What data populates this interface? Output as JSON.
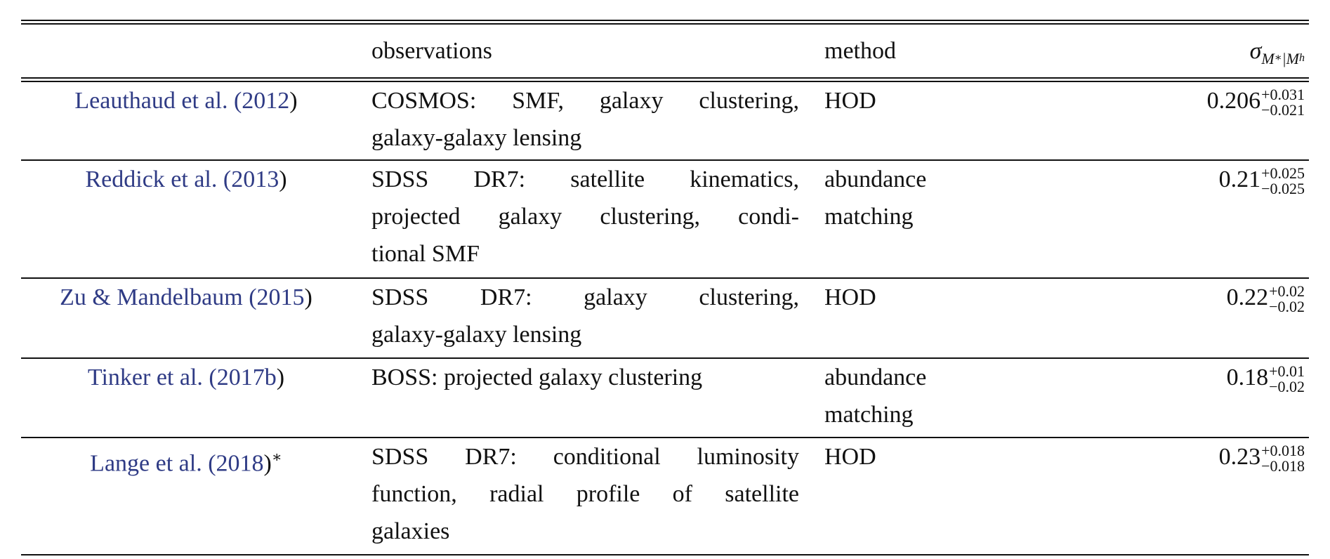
{
  "table": {
    "header": {
      "observations": "observations",
      "method": "method",
      "sigma": {
        "symbol": "σ",
        "parts": [
          "M",
          "∗",
          "|M",
          "h"
        ]
      }
    },
    "rows": [
      {
        "ref": {
          "authors": "Leauthaud et al. (",
          "year": "2012",
          "close": ")"
        },
        "observations": [
          "COSMOS: SMF, galaxy clustering,",
          "galaxy-galaxy lensing"
        ],
        "method": [
          "HOD"
        ],
        "value": {
          "central": "0.206",
          "plus": "+0.031",
          "minus": "−0.021"
        }
      },
      {
        "ref": {
          "authors": "Reddick et al. (",
          "year": "2013",
          "close": ")"
        },
        "observations": [
          "SDSS DR7: satellite kinematics,",
          "projected galaxy clustering, condi-",
          "tional SMF"
        ],
        "method": [
          "abundance",
          "matching"
        ],
        "value": {
          "central": "0.21",
          "plus": "+0.025",
          "minus": "−0.025"
        }
      },
      {
        "ref": {
          "authors": "Zu & Mandelbaum (",
          "year": "2015",
          "close": ")"
        },
        "observations": [
          "SDSS DR7: galaxy clustering,",
          "galaxy-galaxy lensing"
        ],
        "method": [
          "HOD"
        ],
        "value": {
          "central": "0.22",
          "plus": "+0.02",
          "minus": "−0.02"
        }
      },
      {
        "ref": {
          "authors": "Tinker et al. (",
          "year": "2017b",
          "close": ")"
        },
        "observations": [
          "BOSS: projected galaxy clustering"
        ],
        "method": [
          "abundance",
          "matching"
        ],
        "value": {
          "central": "0.18",
          "plus": "+0.01",
          "minus": "−0.02"
        }
      },
      {
        "ref": {
          "authors": "Lange et al. (",
          "year": "2018",
          "close": ")",
          "mark": "∗"
        },
        "observations": [
          "SDSS DR7: conditional luminosity",
          "function, radial profile of satellite",
          "galaxies"
        ],
        "method": [
          "HOD"
        ],
        "value": {
          "central": "0.23",
          "plus": "+0.018",
          "minus": "−0.018"
        }
      }
    ]
  }
}
